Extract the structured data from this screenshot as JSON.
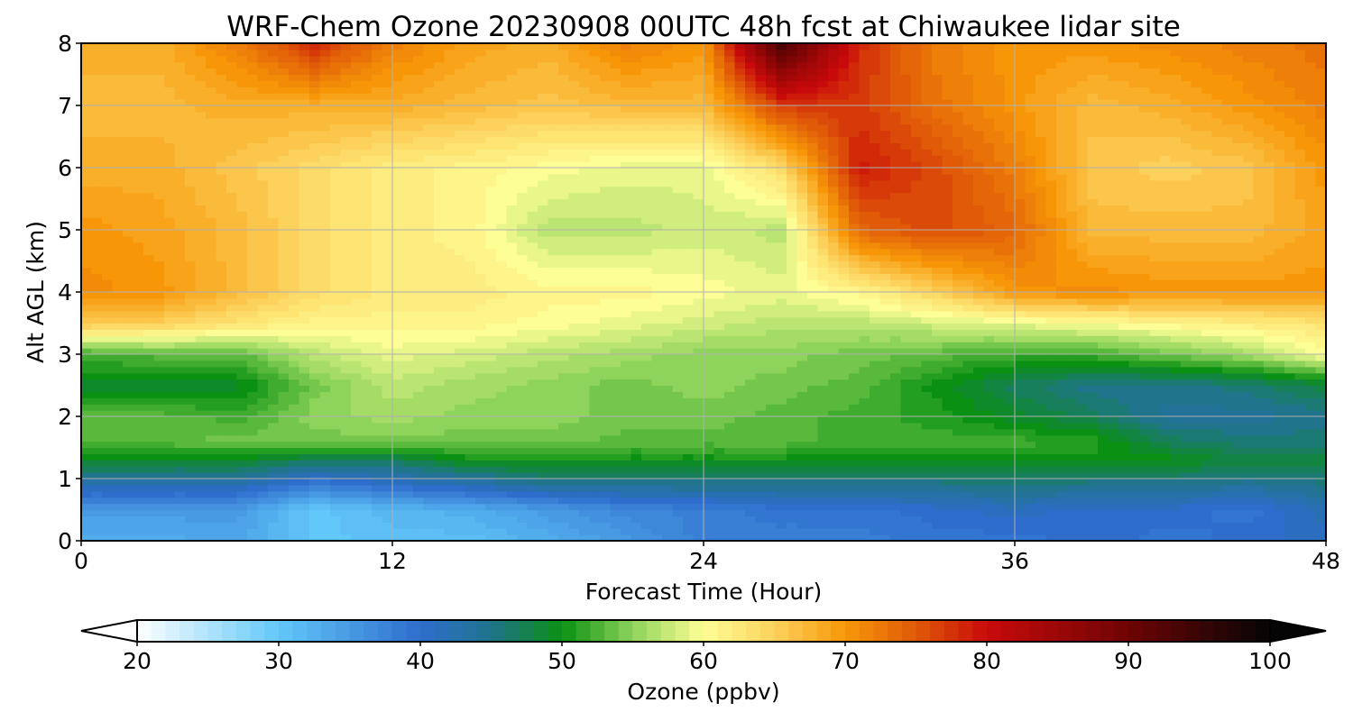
{
  "chart_data": {
    "type": "heatmap",
    "title": "WRF-Chem Ozone  20230908 00UTC 48h fcst at Chiwaukee lidar site",
    "xlabel": "Forecast Time (Hour)",
    "ylabel": "Alt AGL (km)",
    "xlim": [
      0,
      48
    ],
    "ylim": [
      0,
      8
    ],
    "x_ticks": [
      0,
      12,
      24,
      36,
      48
    ],
    "y_ticks": [
      0,
      1,
      2,
      3,
      4,
      5,
      6,
      7,
      8
    ],
    "grid": true,
    "x": [
      0,
      3,
      6,
      9,
      12,
      15,
      18,
      21,
      24,
      27,
      30,
      33,
      36,
      39,
      42,
      45,
      48
    ],
    "y": [
      0,
      0.5,
      1,
      1.3,
      1.6,
      2,
      2.5,
      3,
      3.5,
      4,
      5,
      6,
      7,
      8
    ],
    "z": [
      [
        33,
        33,
        34,
        30,
        31,
        31,
        33,
        35,
        38,
        38,
        38,
        39,
        39,
        40,
        39,
        40,
        41
      ],
      [
        35,
        35,
        35,
        30,
        32,
        33,
        35,
        37,
        38,
        39,
        39,
        40,
        41,
        40,
        40,
        39,
        42
      ],
      [
        44,
        44,
        44,
        40,
        42,
        44,
        46,
        46,
        46,
        46,
        46,
        46,
        47,
        46,
        46,
        45,
        46
      ],
      [
        49,
        49,
        49,
        47,
        47,
        50,
        50,
        50,
        50,
        50,
        50,
        50,
        50,
        50,
        50,
        48,
        48
      ],
      [
        53,
        53,
        54,
        54,
        54,
        54,
        54,
        53,
        53,
        53,
        52,
        52,
        52,
        51,
        47,
        46,
        46
      ],
      [
        53,
        53,
        52,
        55,
        56,
        55,
        55,
        54,
        54,
        53,
        52,
        51,
        49,
        47,
        44,
        44,
        45
      ],
      [
        49,
        49,
        49,
        54,
        57,
        56,
        55,
        54,
        55,
        54,
        53,
        50,
        47,
        45,
        45,
        46,
        48
      ],
      [
        52,
        53,
        53,
        57,
        59,
        58,
        57,
        56,
        55,
        55,
        54,
        53,
        52,
        52,
        54,
        56,
        60
      ],
      [
        66,
        65,
        63,
        61,
        61,
        61,
        60,
        59,
        58,
        57,
        57,
        58,
        59,
        60,
        61,
        62,
        63
      ],
      [
        71,
        70,
        67,
        64,
        62,
        62,
        61,
        61,
        60,
        59,
        61,
        65,
        70,
        71,
        70,
        70,
        70
      ],
      [
        70,
        69,
        67,
        64,
        62,
        61,
        57,
        57,
        58,
        57,
        74,
        76,
        74,
        67,
        67,
        67,
        69
      ],
      [
        68,
        68,
        66,
        64,
        62,
        61,
        60,
        59,
        59,
        64,
        79,
        76,
        72,
        66,
        65,
        66,
        70
      ],
      [
        67,
        67,
        68,
        68,
        68,
        67,
        66,
        67,
        67,
        77,
        77,
        73,
        70,
        67,
        68,
        70,
        72
      ],
      [
        68,
        68,
        72,
        78,
        72,
        69,
        68,
        72,
        70,
        94,
        78,
        72,
        70,
        70,
        71,
        72,
        73
      ]
    ],
    "colorbar": {
      "label": "Ozone  (ppbv)",
      "min": 20,
      "max": 100,
      "ticks": [
        20,
        30,
        40,
        50,
        60,
        70,
        80,
        90,
        100
      ],
      "extend": "both",
      "stops": [
        {
          "v": 20,
          "c": "#ffffff"
        },
        {
          "v": 30,
          "c": "#62c8fa"
        },
        {
          "v": 40,
          "c": "#2e6dcc"
        },
        {
          "v": 45,
          "c": "#20748c"
        },
        {
          "v": 50,
          "c": "#0a9012"
        },
        {
          "v": 55,
          "c": "#8ed45a"
        },
        {
          "v": 60,
          "c": "#fefe96"
        },
        {
          "v": 65,
          "c": "#fcd25c"
        },
        {
          "v": 70,
          "c": "#f79708"
        },
        {
          "v": 75,
          "c": "#e05a08"
        },
        {
          "v": 80,
          "c": "#c80a0a"
        },
        {
          "v": 90,
          "c": "#6e0404"
        },
        {
          "v": 100,
          "c": "#050505"
        }
      ]
    }
  }
}
